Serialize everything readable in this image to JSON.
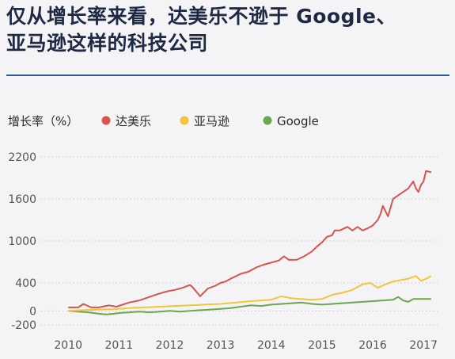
{
  "title": {
    "line1": "仅从增长率来看，达美乐不逊于 Google、",
    "line2": "亚马逊这样的科技公司"
  },
  "chart_data": {
    "type": "line",
    "ylabel": "增长率（%）",
    "yticks": [
      2200,
      1600,
      1000,
      400,
      0,
      -200
    ],
    "ylim": [
      -200,
      2200
    ],
    "xticks": [
      2010,
      2011,
      2012,
      2013,
      2014,
      2015,
      2016,
      2017
    ],
    "xlim": [
      2009.95,
      2017.2
    ],
    "grid": "horizontal-dotted",
    "legend_position": "top",
    "series": [
      {
        "name": "达美乐",
        "color": "#d9534f",
        "x": [
          2010.0,
          2010.2,
          2010.3,
          2010.45,
          2010.6,
          2010.8,
          2010.95,
          2011.2,
          2011.4,
          2011.6,
          2011.8,
          2011.95,
          2012.1,
          2012.25,
          2012.4,
          2012.45,
          2012.6,
          2012.75,
          2012.9,
          2013.0,
          2013.1,
          2013.2,
          2013.4,
          2013.55,
          2013.7,
          2013.85,
          2014.0,
          2014.15,
          2014.25,
          2014.35,
          2014.5,
          2014.65,
          2014.8,
          2014.9,
          2015.0,
          2015.1,
          2015.2,
          2015.25,
          2015.35,
          2015.5,
          2015.6,
          2015.7,
          2015.8,
          2015.9,
          2016.0,
          2016.1,
          2016.15,
          2016.2,
          2016.3,
          2016.4,
          2016.5,
          2016.6,
          2016.7,
          2016.75,
          2016.8,
          2016.85,
          2016.9,
          2016.95,
          2017.0,
          2017.05,
          2017.15
        ],
        "y": [
          50,
          50,
          100,
          50,
          50,
          80,
          60,
          120,
          150,
          200,
          250,
          280,
          300,
          330,
          370,
          340,
          210,
          320,
          360,
          400,
          420,
          460,
          530,
          560,
          620,
          660,
          690,
          720,
          780,
          730,
          730,
          780,
          850,
          920,
          980,
          1060,
          1080,
          1150,
          1150,
          1200,
          1150,
          1200,
          1150,
          1180,
          1220,
          1300,
          1380,
          1500,
          1350,
          1600,
          1650,
          1700,
          1750,
          1800,
          1850,
          1750,
          1700,
          1800,
          1850,
          2000,
          1980
        ]
      },
      {
        "name": "亚马逊",
        "color": "#f2c53d",
        "x": [
          2010.0,
          2010.3,
          2010.6,
          2010.9,
          2011.2,
          2011.5,
          2011.8,
          2012.1,
          2012.4,
          2012.7,
          2013.0,
          2013.3,
          2013.6,
          2013.8,
          2014.0,
          2014.2,
          2014.4,
          2014.6,
          2014.8,
          2015.0,
          2015.2,
          2015.4,
          2015.6,
          2015.8,
          2015.95,
          2016.1,
          2016.25,
          2016.4,
          2016.55,
          2016.7,
          2016.85,
          2016.95,
          2017.05,
          2017.15
        ],
        "y": [
          0,
          10,
          20,
          25,
          40,
          50,
          60,
          70,
          80,
          90,
          100,
          120,
          140,
          150,
          160,
          210,
          180,
          170,
          160,
          170,
          230,
          260,
          300,
          380,
          400,
          330,
          380,
          420,
          440,
          460,
          500,
          430,
          460,
          500
        ]
      },
      {
        "name": "Google",
        "color": "#6aa84f",
        "x": [
          2010.0,
          2010.2,
          2010.4,
          2010.6,
          2010.75,
          2010.9,
          2011.0,
          2011.2,
          2011.4,
          2011.6,
          2011.8,
          2012.0,
          2012.2,
          2012.4,
          2012.6,
          2012.8,
          2013.0,
          2013.2,
          2013.4,
          2013.6,
          2013.8,
          2014.0,
          2014.2,
          2014.4,
          2014.6,
          2014.8,
          2015.0,
          2015.2,
          2015.4,
          2015.6,
          2015.8,
          2016.0,
          2016.2,
          2016.4,
          2016.5,
          2016.6,
          2016.7,
          2016.8,
          2017.0,
          2017.15
        ],
        "y": [
          0,
          -10,
          -20,
          -40,
          -50,
          -40,
          -30,
          -20,
          -10,
          -20,
          -10,
          0,
          -10,
          0,
          10,
          20,
          30,
          40,
          60,
          80,
          70,
          90,
          100,
          110,
          120,
          100,
          90,
          100,
          110,
          120,
          130,
          140,
          150,
          160,
          200,
          150,
          130,
          170,
          170,
          170
        ]
      }
    ]
  }
}
